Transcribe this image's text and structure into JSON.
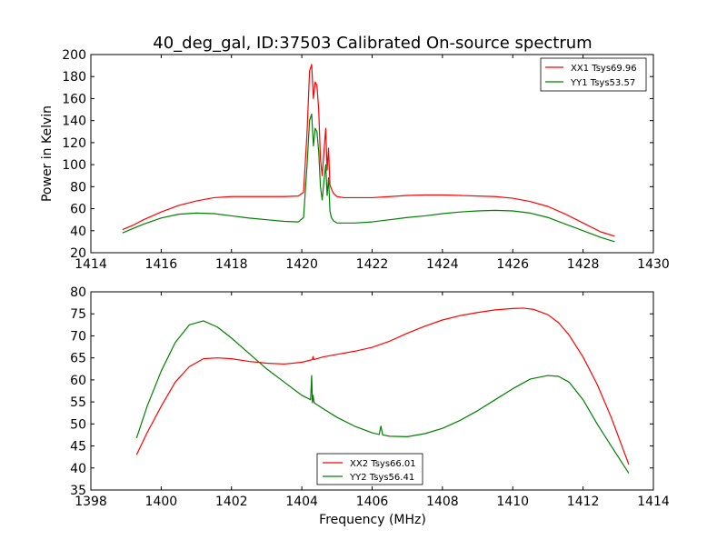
{
  "chart_data": [
    {
      "type": "line",
      "title": "40_deg_gal, ID:37503 Calibrated On-source spectrum",
      "xlabel": "",
      "ylabel": "Power in Kelvin",
      "xlim": [
        1414,
        1430
      ],
      "ylim": [
        20,
        200
      ],
      "xticks": [
        1414,
        1416,
        1418,
        1420,
        1422,
        1424,
        1426,
        1428,
        1430
      ],
      "yticks": [
        20,
        40,
        60,
        80,
        100,
        120,
        140,
        160,
        180,
        200
      ],
      "grid": false,
      "legend_position": "top-right",
      "series": [
        {
          "name": "XX1 Tsys69.96",
          "color": "#ff0000",
          "x": [
            1414.9,
            1415.2,
            1415.5,
            1416.0,
            1416.5,
            1417.0,
            1417.5,
            1418.0,
            1418.5,
            1419.0,
            1419.5,
            1419.9,
            1420.05,
            1420.15,
            1420.22,
            1420.28,
            1420.33,
            1420.38,
            1420.43,
            1420.48,
            1420.53,
            1420.58,
            1420.63,
            1420.68,
            1420.72,
            1420.76,
            1420.8,
            1420.84,
            1420.9,
            1421.0,
            1421.2,
            1421.5,
            1422.0,
            1422.5,
            1423.0,
            1423.5,
            1424.0,
            1424.5,
            1425.0,
            1425.5,
            1426.0,
            1426.5,
            1427.0,
            1427.5,
            1428.0,
            1428.5,
            1428.9
          ],
          "y": [
            41,
            45,
            50,
            57,
            63,
            67,
            70,
            71,
            71,
            71,
            71,
            71.5,
            75,
            130,
            185,
            191,
            160,
            175,
            172,
            150,
            105,
            90,
            112,
            133,
            95,
            115,
            82,
            78,
            74,
            71,
            70,
            70,
            70,
            71,
            72,
            72.5,
            72.5,
            72,
            71.5,
            71,
            69.5,
            66.5,
            62,
            55,
            47,
            39,
            35
          ]
        },
        {
          "name": "YY1 Tsys53.57",
          "color": "#008000",
          "x": [
            1414.9,
            1415.2,
            1415.5,
            1416.0,
            1416.5,
            1417.0,
            1417.5,
            1418.0,
            1418.5,
            1419.0,
            1419.5,
            1419.9,
            1420.05,
            1420.15,
            1420.22,
            1420.28,
            1420.33,
            1420.38,
            1420.43,
            1420.48,
            1420.53,
            1420.58,
            1420.63,
            1420.68,
            1420.72,
            1420.76,
            1420.8,
            1420.84,
            1420.9,
            1421.0,
            1421.2,
            1421.5,
            1422.0,
            1422.5,
            1423.0,
            1423.5,
            1424.0,
            1424.5,
            1425.0,
            1425.5,
            1426.0,
            1426.5,
            1427.0,
            1427.5,
            1428.0,
            1428.5,
            1428.9
          ],
          "y": [
            38,
            42,
            46,
            51.5,
            55,
            56,
            55.5,
            53.5,
            51.5,
            50,
            48.5,
            48,
            52,
            100,
            140,
            146,
            117,
            133,
            130,
            112,
            80,
            68,
            85,
            100,
            72,
            88,
            58,
            52,
            49,
            47,
            47,
            47,
            48,
            50,
            52,
            53.5,
            55.5,
            57,
            58,
            58.5,
            58,
            56,
            52,
            46,
            40,
            34,
            30
          ]
        }
      ]
    },
    {
      "type": "line",
      "title": "",
      "xlabel": "Frequency (MHz)",
      "ylabel": "",
      "xlim": [
        1398,
        1414
      ],
      "ylim": [
        35,
        80
      ],
      "xticks": [
        1398,
        1400,
        1402,
        1404,
        1406,
        1408,
        1410,
        1412,
        1414
      ],
      "yticks": [
        35,
        40,
        45,
        50,
        55,
        60,
        65,
        70,
        75,
        80
      ],
      "grid": false,
      "legend_position": "bottom-center",
      "series": [
        {
          "name": "XX2 Tsys66.01",
          "color": "#ff0000",
          "x": [
            1399.3,
            1399.6,
            1400.0,
            1400.4,
            1400.8,
            1401.2,
            1401.6,
            1402.0,
            1402.5,
            1403.0,
            1403.5,
            1404.0,
            1404.3,
            1404.32,
            1404.34,
            1404.6,
            1405.0,
            1405.5,
            1406.0,
            1406.5,
            1407.0,
            1407.5,
            1408.0,
            1408.5,
            1409.0,
            1409.5,
            1410.0,
            1410.3,
            1410.6,
            1411.0,
            1411.3,
            1411.6,
            1412.0,
            1412.4,
            1412.8,
            1413.3
          ],
          "y": [
            43,
            48,
            54,
            59.5,
            63,
            64.8,
            65,
            64.8,
            64.2,
            63.8,
            63.6,
            64,
            64.6,
            65.3,
            64.6,
            65.2,
            65.8,
            66.5,
            67.4,
            68.8,
            70.6,
            72.2,
            73.6,
            74.6,
            75.3,
            75.9,
            76.2,
            76.3,
            76,
            74.8,
            73,
            70.2,
            65.2,
            59,
            51.5,
            40.8
          ]
        },
        {
          "name": "YY2 Tsys56.41",
          "color": "#008000",
          "x": [
            1399.3,
            1399.6,
            1400.0,
            1400.4,
            1400.8,
            1401.2,
            1401.6,
            1402.0,
            1402.5,
            1403.0,
            1403.5,
            1404.0,
            1404.25,
            1404.28,
            1404.3,
            1404.32,
            1404.35,
            1404.6,
            1405.0,
            1405.5,
            1406.0,
            1406.2,
            1406.25,
            1406.3,
            1406.5,
            1407.0,
            1407.5,
            1408.0,
            1408.5,
            1409.0,
            1409.5,
            1410.0,
            1410.5,
            1411.0,
            1411.3,
            1411.6,
            1412.0,
            1412.4,
            1412.8,
            1413.3
          ],
          "y": [
            46.8,
            54,
            62,
            68.5,
            72.5,
            73.4,
            72,
            69.5,
            66,
            62.5,
            59.5,
            56.5,
            55.5,
            61,
            54.8,
            56.5,
            54.8,
            53.5,
            51.5,
            49.5,
            48,
            47.6,
            49.5,
            47.5,
            47.2,
            47.1,
            47.8,
            49,
            50.8,
            53,
            55.5,
            58,
            60.2,
            61,
            60.8,
            59.5,
            55.5,
            50,
            45,
            38.8
          ]
        }
      ]
    }
  ]
}
